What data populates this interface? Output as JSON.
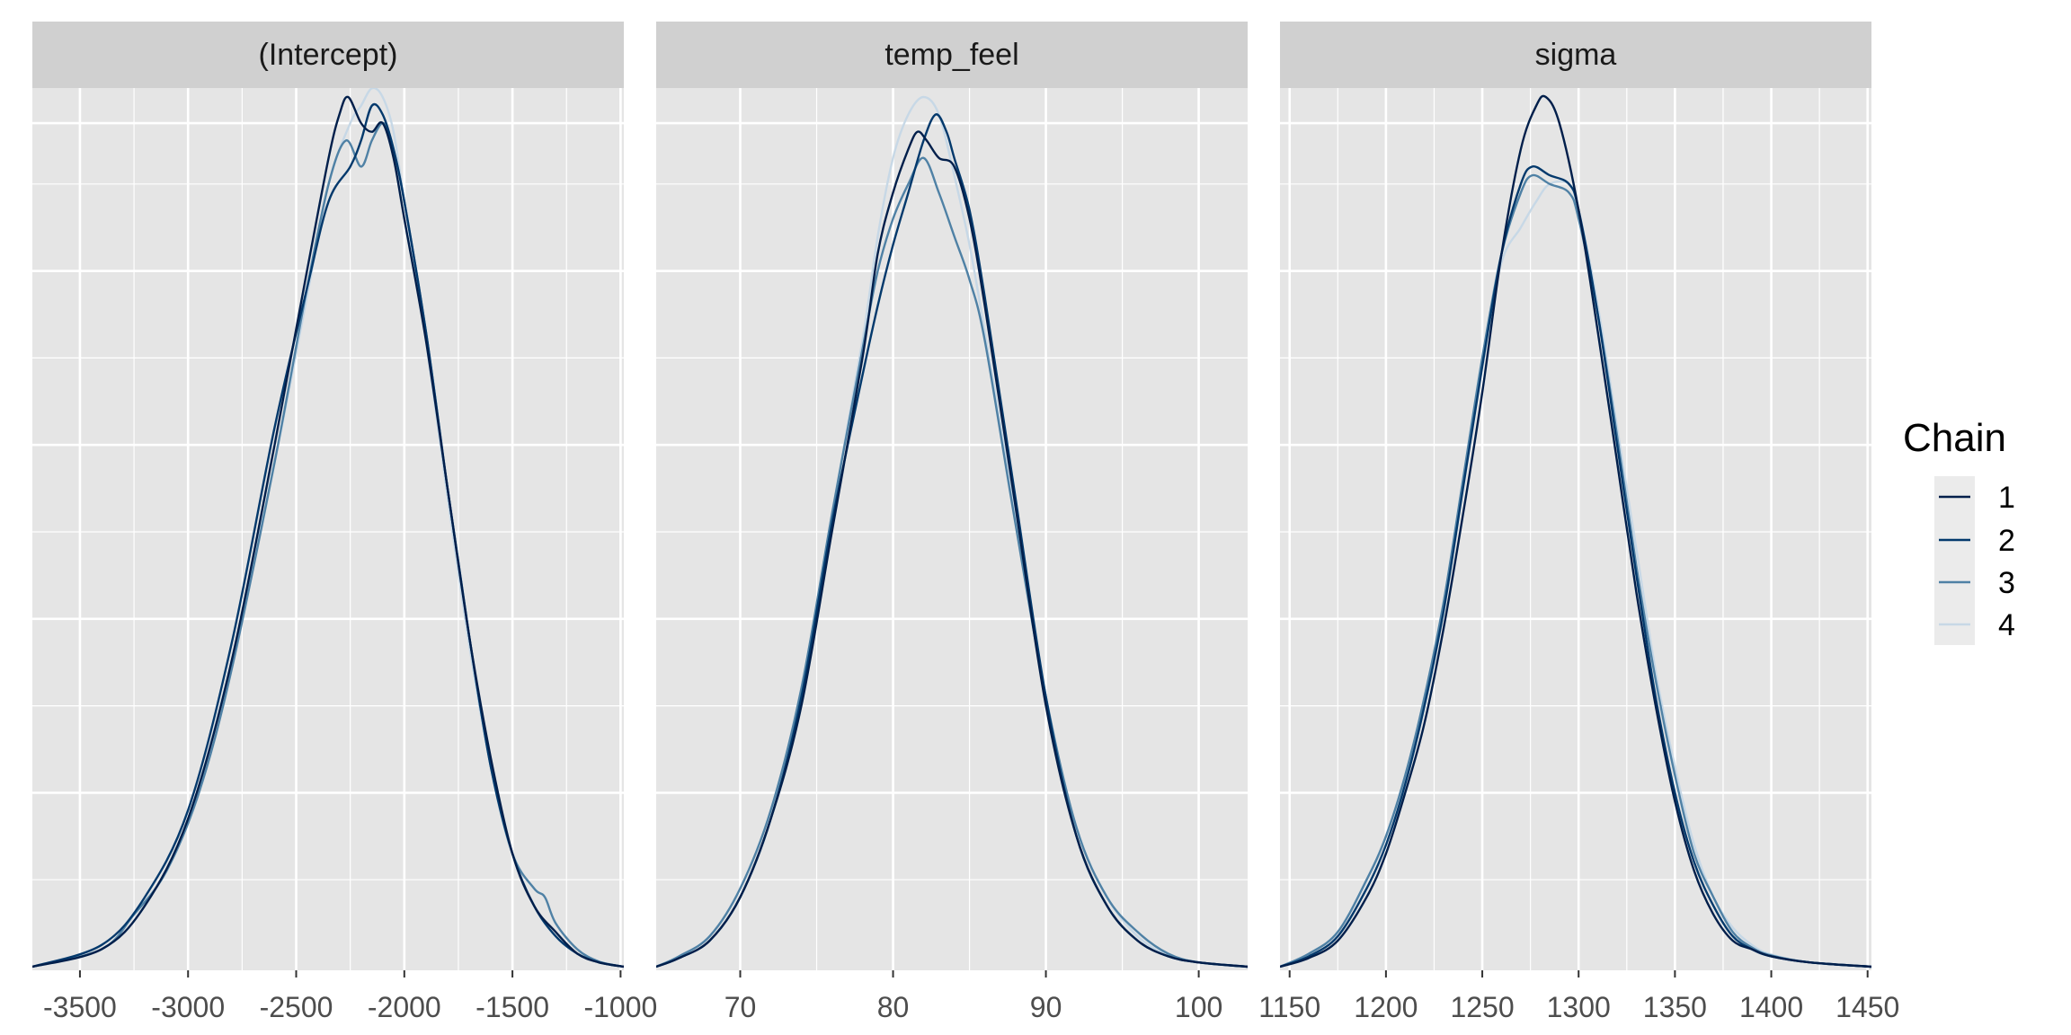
{
  "colors": {
    "panel_bg": "#e5e5e5",
    "strip_bg": "#d0d0d0",
    "grid": "#ffffff",
    "chains": [
      "#011f4b",
      "#03396c",
      "#4f81a5",
      "#c7d8e6"
    ]
  },
  "legend": {
    "title": "Chain",
    "entries": [
      "1",
      "2",
      "3",
      "4"
    ]
  },
  "chart_data": {
    "type": "line",
    "facets": [
      {
        "title": "(Intercept)",
        "xlim": [
          -3720,
          -985
        ],
        "xticks": [
          -3500,
          -3000,
          -2500,
          -2000,
          -1500,
          -1000
        ],
        "xtick_labels": [
          "-3500",
          "-3000",
          "-2500",
          "-2000",
          "-1500",
          "-1000"
        ],
        "series": [
          {
            "name": "1",
            "x": [
              -3720,
              -3400,
              -3200,
              -3000,
              -2800,
              -2600,
              -2450,
              -2350,
              -2300,
              -2260,
              -2200,
              -2150,
              -2100,
              -2050,
              -2000,
              -1900,
              -1800,
              -1700,
              -1600,
              -1500,
              -1400,
              -1300,
              -1200,
              -1100,
              -985
            ],
            "y": [
              0,
              0.02,
              0.07,
              0.17,
              0.35,
              0.6,
              0.8,
              0.93,
              0.98,
              1.0,
              0.97,
              0.96,
              0.97,
              0.93,
              0.86,
              0.72,
              0.55,
              0.38,
              0.24,
              0.13,
              0.07,
              0.04,
              0.015,
              0.005,
              0
            ]
          },
          {
            "name": "2",
            "x": [
              -3720,
              -3400,
              -3200,
              -3000,
              -2800,
              -2600,
              -2450,
              -2350,
              -2250,
              -2200,
              -2150,
              -2100,
              -2050,
              -2000,
              -1900,
              -1800,
              -1700,
              -1600,
              -1500,
              -1400,
              -1300,
              -1200,
              -1100,
              -985
            ],
            "y": [
              0,
              0.025,
              0.08,
              0.18,
              0.37,
              0.62,
              0.78,
              0.88,
              0.92,
              0.95,
              0.99,
              0.98,
              0.94,
              0.88,
              0.73,
              0.55,
              0.38,
              0.23,
              0.13,
              0.07,
              0.035,
              0.015,
              0.005,
              0
            ]
          },
          {
            "name": "3",
            "x": [
              -3720,
              -3400,
              -3250,
              -3100,
              -2950,
              -2800,
              -2600,
              -2450,
              -2350,
              -2270,
              -2200,
              -2150,
              -2100,
              -2060,
              -2000,
              -1900,
              -1800,
              -1700,
              -1600,
              -1500,
              -1400,
              -1350,
              -1300,
              -1200,
              -1100,
              -985
            ],
            "y": [
              0,
              0.02,
              0.06,
              0.11,
              0.2,
              0.34,
              0.58,
              0.78,
              0.9,
              0.95,
              0.92,
              0.95,
              0.97,
              0.95,
              0.88,
              0.73,
              0.55,
              0.38,
              0.23,
              0.13,
              0.09,
              0.08,
              0.05,
              0.02,
              0.006,
              0
            ]
          },
          {
            "name": "4",
            "x": [
              -3720,
              -3400,
              -3200,
              -3000,
              -2800,
              -2600,
              -2450,
              -2350,
              -2250,
              -2200,
              -2150,
              -2100,
              -2050,
              -2000,
              -1900,
              -1800,
              -1700,
              -1600,
              -1500,
              -1400,
              -1300,
              -1200,
              -1100,
              -985
            ],
            "y": [
              0,
              0.02,
              0.07,
              0.17,
              0.35,
              0.58,
              0.77,
              0.9,
              0.97,
              0.99,
              1.01,
              1.0,
              0.96,
              0.88,
              0.72,
              0.54,
              0.37,
              0.23,
              0.13,
              0.07,
              0.035,
              0.015,
              0.005,
              0
            ]
          }
        ]
      },
      {
        "title": "temp_feel",
        "xlim": [
          64.5,
          103.2
        ],
        "xticks": [
          70,
          80,
          90,
          100
        ],
        "xtick_labels": [
          "70",
          "80",
          "90",
          "100"
        ],
        "series": [
          {
            "name": "1",
            "x": [
              64.5,
              66,
              68,
              70,
              72,
              74,
              76,
              78,
              79,
              80,
              81,
              81.6,
              82.2,
              83,
              84,
              85,
              86,
              88,
              90,
              92,
              94,
              96,
              98,
              100,
              103.2
            ],
            "y": [
              0,
              0.01,
              0.03,
              0.08,
              0.17,
              0.3,
              0.5,
              0.7,
              0.82,
              0.89,
              0.94,
              0.96,
              0.95,
              0.93,
              0.92,
              0.86,
              0.76,
              0.53,
              0.3,
              0.15,
              0.07,
              0.03,
              0.012,
              0.005,
              0
            ]
          },
          {
            "name": "2",
            "x": [
              64.5,
              66,
              68,
              70,
              72,
              74,
              76,
              78,
              79,
              80,
              81,
              82,
              82.8,
              83.5,
              84,
              85,
              86,
              88,
              90,
              92,
              94,
              96,
              98,
              100,
              103.2
            ],
            "y": [
              0,
              0.01,
              0.03,
              0.08,
              0.17,
              0.31,
              0.51,
              0.68,
              0.76,
              0.83,
              0.89,
              0.95,
              0.98,
              0.96,
              0.93,
              0.87,
              0.77,
              0.54,
              0.31,
              0.15,
              0.07,
              0.03,
              0.012,
              0.005,
              0
            ]
          },
          {
            "name": "3",
            "x": [
              64.5,
              66,
              68,
              70,
              72,
              74,
              76,
              78,
              79,
              80,
              81,
              82,
              83,
              84,
              85,
              86,
              88,
              90,
              92,
              94,
              96,
              98,
              100,
              103.2
            ],
            "y": [
              0,
              0.012,
              0.035,
              0.09,
              0.18,
              0.32,
              0.52,
              0.71,
              0.8,
              0.86,
              0.9,
              0.93,
              0.89,
              0.84,
              0.79,
              0.72,
              0.51,
              0.31,
              0.16,
              0.08,
              0.04,
              0.015,
              0.005,
              0
            ]
          },
          {
            "name": "4",
            "x": [
              64.5,
              66,
              68,
              70,
              72,
              74,
              76,
              78,
              79,
              80,
              81,
              82,
              83,
              84,
              85,
              86,
              88,
              90,
              92,
              94,
              96,
              98,
              100,
              103.2
            ],
            "y": [
              0,
              0.012,
              0.035,
              0.09,
              0.18,
              0.32,
              0.52,
              0.72,
              0.84,
              0.93,
              0.98,
              1.0,
              0.98,
              0.91,
              0.83,
              0.73,
              0.52,
              0.31,
              0.16,
              0.08,
              0.035,
              0.013,
              0.005,
              0
            ]
          }
        ]
      },
      {
        "title": "sigma",
        "xlim": [
          1145,
          1452
        ],
        "xticks": [
          1150,
          1200,
          1250,
          1300,
          1350,
          1400,
          1450
        ],
        "xtick_labels": [
          "1150",
          "1200",
          "1250",
          "1300",
          "1350",
          "1400",
          "1450"
        ],
        "series": [
          {
            "name": "1",
            "x": [
              1145,
              1160,
              1175,
              1190,
              1200,
              1210,
              1220,
              1230,
              1240,
              1250,
              1260,
              1270,
              1278,
              1283,
              1290,
              1300,
              1310,
              1320,
              1330,
              1340,
              1350,
              1360,
              1370,
              1380,
              1390,
              1400,
              1420,
              1452
            ],
            "y": [
              0,
              0.01,
              0.03,
              0.08,
              0.13,
              0.2,
              0.28,
              0.39,
              0.52,
              0.66,
              0.82,
              0.94,
              0.99,
              1.0,
              0.97,
              0.87,
              0.73,
              0.58,
              0.43,
              0.3,
              0.19,
              0.11,
              0.06,
              0.03,
              0.02,
              0.012,
              0.005,
              0
            ]
          },
          {
            "name": "2",
            "x": [
              1145,
              1160,
              1175,
              1190,
              1200,
              1210,
              1220,
              1230,
              1240,
              1250,
              1260,
              1270,
              1276,
              1285,
              1295,
              1300,
              1310,
              1320,
              1330,
              1340,
              1350,
              1360,
              1370,
              1380,
              1390,
              1400,
              1420,
              1452
            ],
            "y": [
              0,
              0.012,
              0.035,
              0.09,
              0.14,
              0.21,
              0.3,
              0.41,
              0.55,
              0.69,
              0.82,
              0.9,
              0.92,
              0.91,
              0.9,
              0.87,
              0.75,
              0.6,
              0.45,
              0.31,
              0.2,
              0.12,
              0.07,
              0.035,
              0.02,
              0.012,
              0.005,
              0
            ]
          },
          {
            "name": "3",
            "x": [
              1145,
              1160,
              1175,
              1190,
              1200,
              1210,
              1220,
              1230,
              1240,
              1250,
              1260,
              1270,
              1276,
              1285,
              1295,
              1300,
              1310,
              1320,
              1330,
              1340,
              1350,
              1360,
              1370,
              1380,
              1390,
              1400,
              1420,
              1452
            ],
            "y": [
              0,
              0.015,
              0.04,
              0.1,
              0.15,
              0.22,
              0.31,
              0.42,
              0.56,
              0.7,
              0.82,
              0.89,
              0.91,
              0.9,
              0.89,
              0.86,
              0.75,
              0.61,
              0.46,
              0.33,
              0.22,
              0.13,
              0.08,
              0.04,
              0.022,
              0.013,
              0.005,
              0
            ]
          },
          {
            "name": "4",
            "x": [
              1145,
              1160,
              1175,
              1190,
              1200,
              1210,
              1220,
              1230,
              1240,
              1250,
              1260,
              1270,
              1278,
              1285,
              1295,
              1300,
              1310,
              1320,
              1330,
              1340,
              1350,
              1360,
              1370,
              1380,
              1390,
              1400,
              1420,
              1452
            ],
            "y": [
              0,
              0.015,
              0.04,
              0.1,
              0.15,
              0.22,
              0.31,
              0.42,
              0.56,
              0.7,
              0.81,
              0.85,
              0.88,
              0.9,
              0.9,
              0.87,
              0.76,
              0.62,
              0.48,
              0.34,
              0.23,
              0.14,
              0.08,
              0.045,
              0.025,
              0.014,
              0.005,
              0
            ]
          }
        ]
      }
    ]
  }
}
